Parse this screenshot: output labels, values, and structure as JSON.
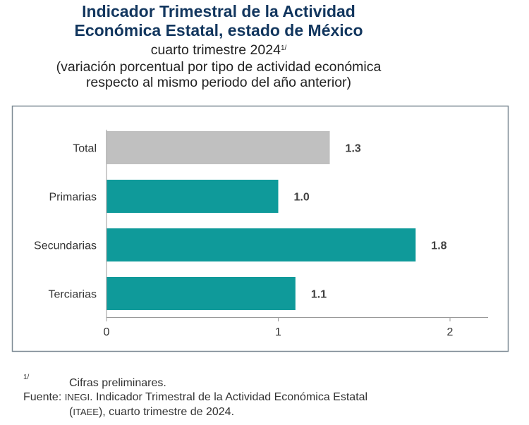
{
  "title_line1": "Indicador Trimestral de la Actividad",
  "title_line2": "Económica Estatal, estado de México",
  "subtitle": "cuarto trimestre 2024",
  "subtitle_note_mark": "1/",
  "subtitle2_line1": "(variación porcentual por tipo de actividad económica",
  "subtitle2_line2": "respecto al mismo periodo del año anterior)",
  "chart_data": {
    "type": "bar",
    "orientation": "horizontal",
    "categories": [
      "Total",
      "Primarias",
      "Secundarias",
      "Terciarias"
    ],
    "values": [
      1.3,
      1.0,
      1.8,
      1.1
    ],
    "data_labels": [
      "1.3",
      "1.0",
      "1.8",
      "1.1"
    ],
    "colors": [
      "#c0c0c0",
      "#0f9a9a",
      "#0f9a9a",
      "#0f9a9a"
    ],
    "xlim": [
      0,
      2.2
    ],
    "xticks": [
      "0",
      "1",
      "2"
    ],
    "grid": false
  },
  "footnote": {
    "mark": "1/",
    "text": "Cifras preliminares.",
    "source_label": "Fuente:",
    "source_org": "INEGI",
    "source_text": ". Indicador Trimestral de la Actividad Económica Estatal",
    "source_line2_open": "(",
    "source_abbr": "ITAEE",
    "source_line2_rest": "), cuarto trimestre de 2024."
  }
}
